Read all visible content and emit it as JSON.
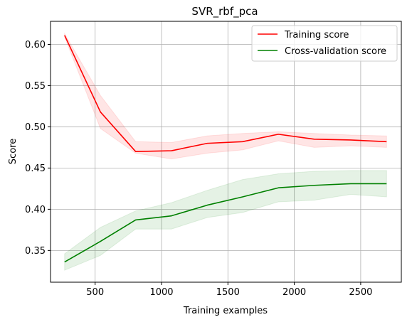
{
  "chart_data": {
    "type": "line",
    "title": "SVR_rbf_pca",
    "xlabel": "Training examples",
    "ylabel": "Score",
    "xlim": [
      164,
      2806
    ],
    "ylim": [
      0.3115,
      0.628
    ],
    "x_ticks": [
      {
        "value": 500,
        "label": "500"
      },
      {
        "value": 1000,
        "label": "1000"
      },
      {
        "value": 1500,
        "label": "1500"
      },
      {
        "value": 2000,
        "label": "2000"
      },
      {
        "value": 2500,
        "label": "2500"
      }
    ],
    "y_ticks": [
      {
        "value": 0.35,
        "label": "0.35"
      },
      {
        "value": 0.4,
        "label": "0.40"
      },
      {
        "value": 0.45,
        "label": "0.45"
      },
      {
        "value": 0.5,
        "label": "0.50"
      },
      {
        "value": 0.55,
        "label": "0.55"
      },
      {
        "value": 0.6,
        "label": "0.60"
      }
    ],
    "grid": true,
    "legend_position": "top-right",
    "x": [
      270,
      540,
      805,
      1075,
      1345,
      1610,
      1880,
      2150,
      2425,
      2695
    ],
    "series": [
      {
        "name": "Training score",
        "color": "#ff0000",
        "band_color": "#ff0000",
        "values": [
          0.611,
          0.518,
          0.47,
          0.471,
          0.48,
          0.482,
          0.491,
          0.485,
          0.484,
          0.482
        ],
        "upper": [
          0.613,
          0.538,
          0.482,
          0.481,
          0.489,
          0.492,
          0.494,
          0.492,
          0.49,
          0.489
        ],
        "lower": [
          0.609,
          0.498,
          0.468,
          0.461,
          0.468,
          0.472,
          0.483,
          0.475,
          0.477,
          0.475
        ]
      },
      {
        "name": "Cross-validation score",
        "color": "#008000",
        "band_color": "#008000",
        "values": [
          0.336,
          0.361,
          0.387,
          0.392,
          0.405,
          0.415,
          0.426,
          0.429,
          0.431,
          0.431
        ],
        "upper": [
          0.346,
          0.378,
          0.398,
          0.408,
          0.423,
          0.436,
          0.443,
          0.446,
          0.447,
          0.447
        ],
        "lower": [
          0.326,
          0.344,
          0.376,
          0.376,
          0.39,
          0.396,
          0.409,
          0.411,
          0.418,
          0.415
        ]
      }
    ]
  }
}
